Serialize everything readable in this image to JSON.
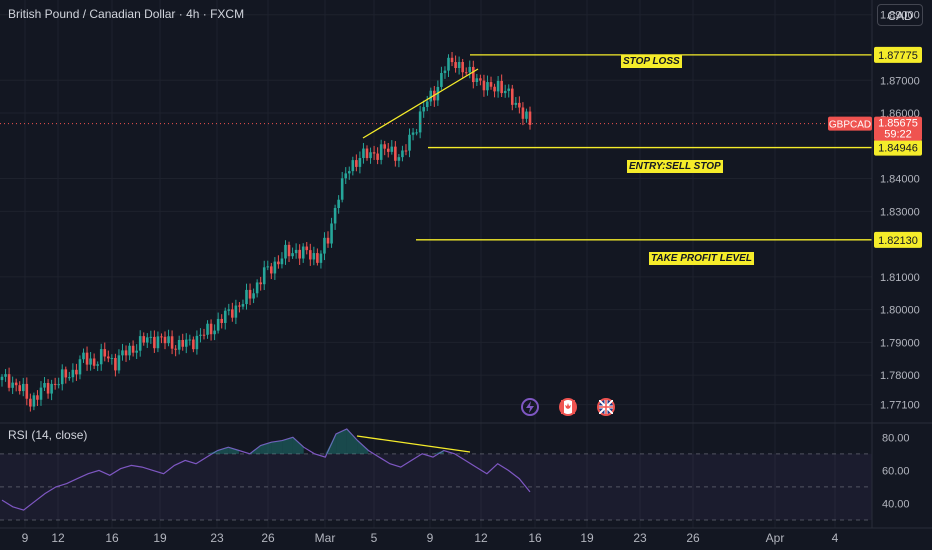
{
  "header": {
    "title": "British Pound / Canadian Dollar · 4h · FXCM",
    "currency_button": "CAD"
  },
  "rsi_panel": {
    "title": "RSI (14, close)",
    "ticks": [
      "80.00",
      "60.00",
      "40.00"
    ],
    "line_color": "#7e57c2"
  },
  "price_axis": {
    "ticks": [
      "1.89000",
      "1.87000",
      "1.86000",
      "1.84000",
      "1.83000",
      "1.81000",
      "1.80000",
      "1.79000",
      "1.78000",
      "1.77100"
    ]
  },
  "price_badges": {
    "symbol": "GBPCAD",
    "price": "1.85675",
    "countdown": "59:22",
    "stop_loss": "1.87775",
    "entry": "1.84946",
    "take_profit": "1.82130"
  },
  "annotations": {
    "stop_loss": "STOP LOSS",
    "entry": "ENTRY:SELL STOP",
    "take_profit": "TAKE PROFIT LEVEL"
  },
  "time_axis": {
    "ticks": [
      "9",
      "12",
      "16",
      "19",
      "23",
      "26",
      "Mar",
      "5",
      "9",
      "12",
      "16",
      "19",
      "23",
      "26",
      "Apr",
      "4"
    ]
  },
  "event_icons": [
    "lightning-icon",
    "canada-flag-icon",
    "uk-flag-icon"
  ],
  "colors": {
    "up": "#26a69a",
    "down": "#ef5350",
    "level_line": "#f5ec2a",
    "background": "#131722"
  },
  "chart_data": {
    "type": "candlestick",
    "instrument": "GBPCAD",
    "timeframe": "4h",
    "ylim": [
      1.766,
      1.8945
    ],
    "close_approx": [
      1.7785,
      1.776,
      1.772,
      1.775,
      1.777,
      1.779,
      1.781,
      1.785,
      1.784,
      1.786,
      1.784,
      1.787,
      1.789,
      1.791,
      1.791,
      1.79,
      1.789,
      1.79,
      1.792,
      1.794,
      1.797,
      1.8,
      1.802,
      1.806,
      1.811,
      1.814,
      1.817,
      1.818,
      1.817,
      1.816,
      1.821,
      1.836,
      1.843,
      1.847,
      1.847,
      1.849,
      1.848,
      1.847,
      1.854,
      1.862,
      1.866,
      1.874,
      1.876,
      1.872,
      1.871,
      1.867,
      1.869,
      1.865,
      1.862,
      1.856
    ],
    "levels": [
      {
        "name": "STOP LOSS",
        "value": 1.87775
      },
      {
        "name": "ENTRY:SELL STOP",
        "value": 1.84946
      },
      {
        "name": "TAKE PROFIT LEVEL",
        "value": 1.8213
      }
    ],
    "current_price": 1.85675,
    "rsi": {
      "ylim": [
        30,
        85
      ],
      "bands": [
        70,
        50,
        30
      ],
      "values_approx": [
        42,
        38,
        36,
        41,
        46,
        50,
        52,
        55,
        58,
        60,
        57,
        61,
        63,
        62,
        60,
        58,
        63,
        66,
        64,
        68,
        72,
        74,
        72,
        70,
        75,
        77,
        78,
        80,
        74,
        70,
        68,
        82,
        85,
        78,
        72,
        68,
        64,
        62,
        66,
        70,
        68,
        72,
        70,
        66,
        62,
        58,
        64,
        60,
        55,
        47
      ]
    }
  }
}
